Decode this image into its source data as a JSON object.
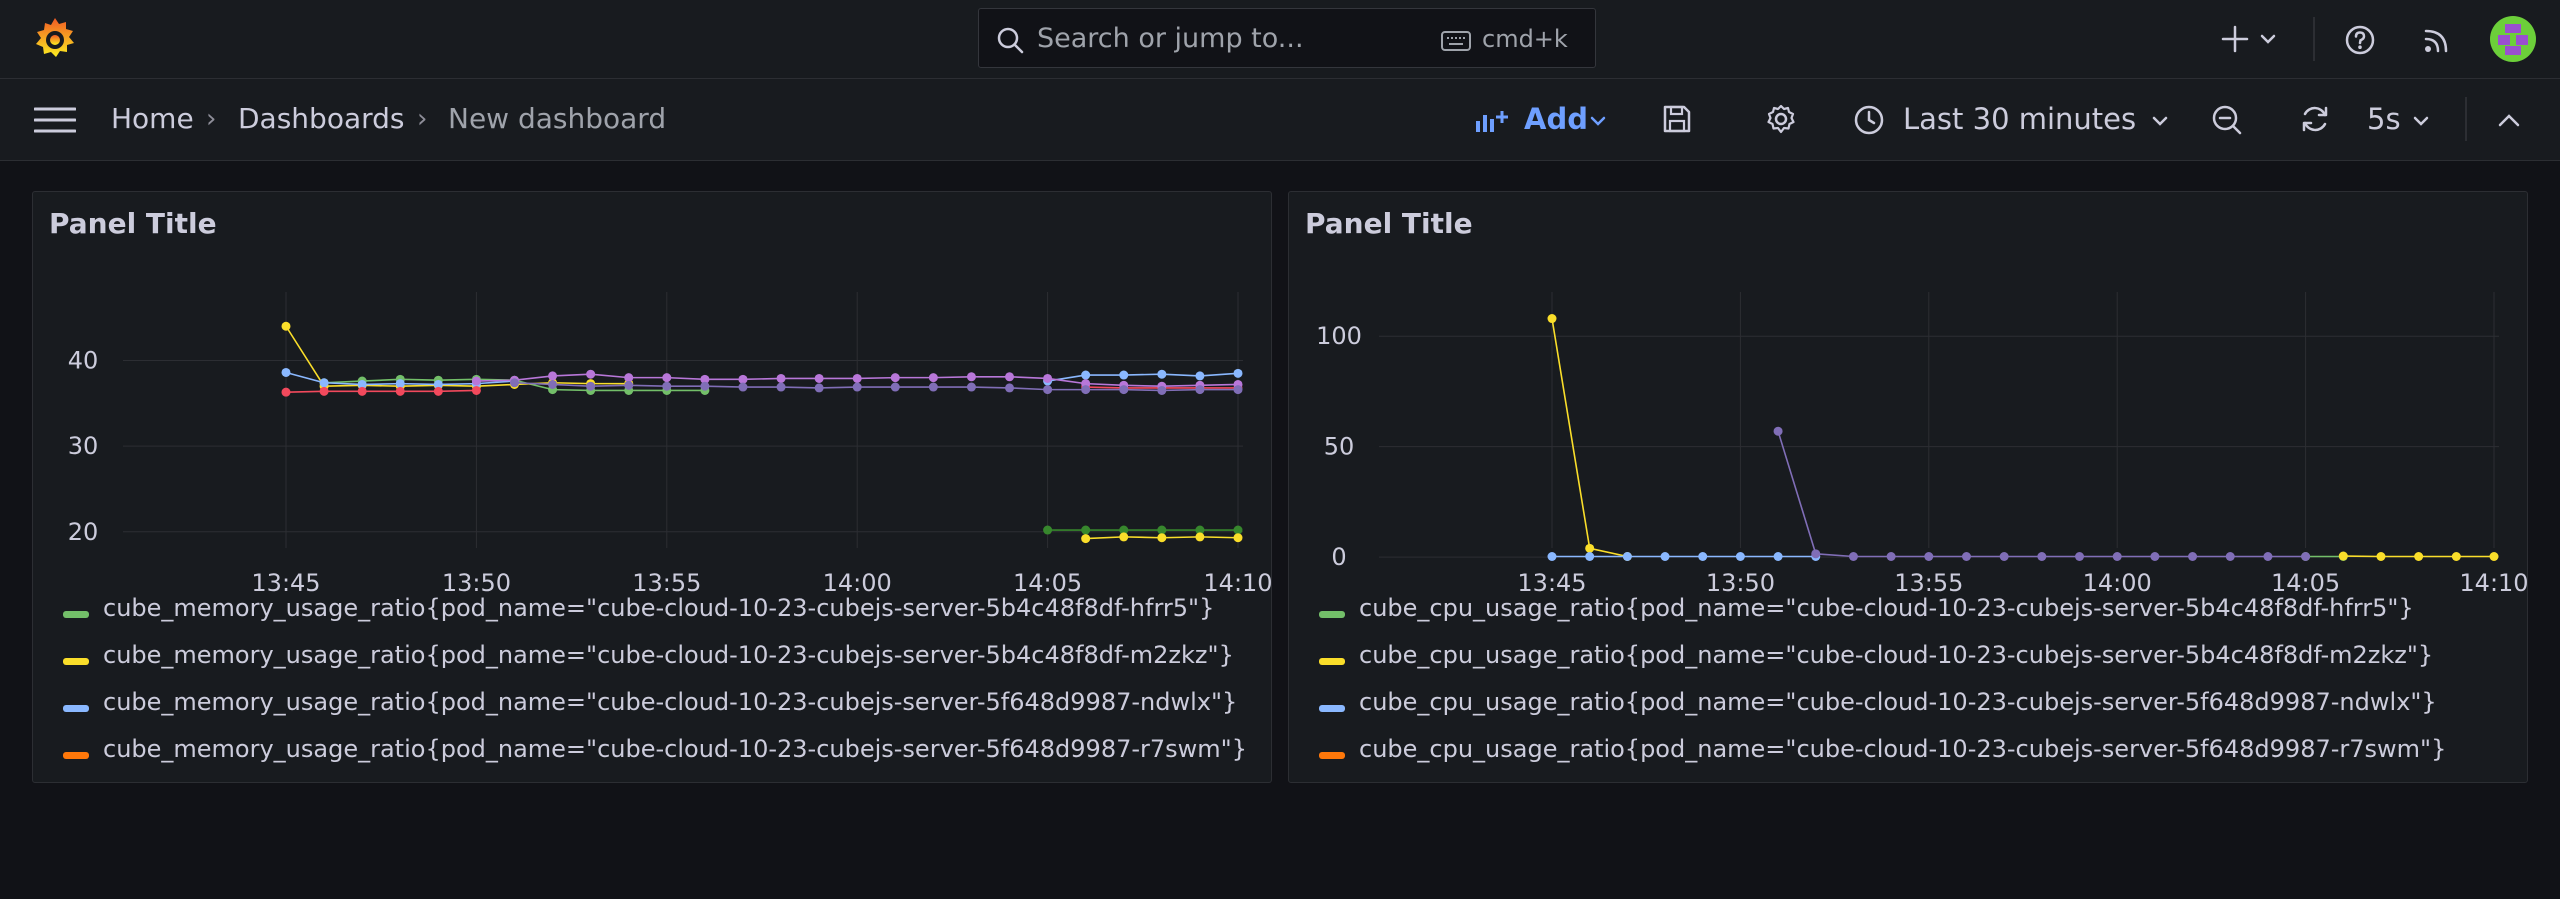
{
  "topbar": {
    "search_placeholder": "Search or jump to...",
    "shortcut": "cmd+k",
    "icons": [
      "grafana-logo-icon",
      "search-icon",
      "keyboard-icon",
      "plus-icon",
      "chevron-down-icon",
      "help-icon",
      "rss-icon",
      "avatar"
    ]
  },
  "navbar": {
    "breadcrumbs": [
      "Home",
      "Dashboards",
      "New dashboard"
    ],
    "add_label": "Add",
    "time_range": "Last 30 minutes",
    "refresh_interval": "5s"
  },
  "colors": {
    "green": "#73bf69",
    "yellow": "#fade2a",
    "blue": "#8ab8ff",
    "orange": "#ff780a",
    "red": "#f2495c",
    "purple": "#b877d9",
    "accent": "#6e9fff"
  },
  "panels": [
    {
      "title": "Panel Title",
      "legend": [
        {
          "label": "cube_memory_usage_ratio{pod_name=\"cube-cloud-10-23-cubejs-server-5b4c48f8df-hfrr5\"}",
          "color": "#73bf69"
        },
        {
          "label": "cube_memory_usage_ratio{pod_name=\"cube-cloud-10-23-cubejs-server-5b4c48f8df-m2zkz\"}",
          "color": "#fade2a"
        },
        {
          "label": "cube_memory_usage_ratio{pod_name=\"cube-cloud-10-23-cubejs-server-5f648d9987-ndwlx\"}",
          "color": "#8ab8ff"
        },
        {
          "label": "cube_memory_usage_ratio{pod_name=\"cube-cloud-10-23-cubejs-server-5f648d9987-r7swm\"}",
          "color": "#ff780a"
        }
      ]
    },
    {
      "title": "Panel Title",
      "legend": [
        {
          "label": "cube_cpu_usage_ratio{pod_name=\"cube-cloud-10-23-cubejs-server-5b4c48f8df-hfrr5\"}",
          "color": "#73bf69"
        },
        {
          "label": "cube_cpu_usage_ratio{pod_name=\"cube-cloud-10-23-cubejs-server-5b4c48f8df-m2zkz\"}",
          "color": "#fade2a"
        },
        {
          "label": "cube_cpu_usage_ratio{pod_name=\"cube-cloud-10-23-cubejs-server-5f648d9987-ndwlx\"}",
          "color": "#8ab8ff"
        },
        {
          "label": "cube_cpu_usage_ratio{pod_name=\"cube-cloud-10-23-cubejs-server-5f648d9987-r7swm\"}",
          "color": "#ff780a"
        }
      ]
    }
  ],
  "chart_data": [
    {
      "type": "line",
      "title": "Panel Title",
      "xlabel": "",
      "ylabel": "",
      "x_ticks": [
        "13:45",
        "13:50",
        "13:55",
        "14:00",
        "14:05",
        "14:10"
      ],
      "y_ticks": [
        20,
        30,
        40
      ],
      "xlim": [
        0,
        25.2
      ],
      "ylim": [
        16,
        48
      ],
      "grid": true,
      "legend_position": "bottom",
      "series": [
        {
          "name": "cube_memory_usage_ratio{pod_name=\"cube-cloud-10-23-cubejs-server-5b4c48f8df-hfrr5\"}",
          "color": "#73bf69",
          "x": [
            1,
            2,
            3,
            4,
            5,
            6,
            7,
            8,
            9,
            10,
            11
          ],
          "y": [
            37.4,
            37.6,
            37.8,
            37.7,
            37.8,
            37.7,
            36.6,
            36.5,
            36.5,
            36.5,
            36.5
          ]
        },
        {
          "name": "",
          "color": "#37872d",
          "x": [
            20,
            21,
            22,
            23,
            24,
            25
          ],
          "y": [
            20.2,
            20.2,
            20.2,
            20.2,
            20.2,
            20.2
          ]
        },
        {
          "name": "cube_memory_usage_ratio{pod_name=\"cube-cloud-10-23-cubejs-server-5b4c48f8df-m2zkz\"}",
          "color": "#fade2a",
          "x": [
            0,
            1,
            2,
            3,
            4,
            5,
            6,
            7,
            8,
            9
          ],
          "y": [
            44,
            37.0,
            37.1,
            37.0,
            37.1,
            37.0,
            37.2,
            37.4,
            37.3,
            37.3
          ]
        },
        {
          "name": "",
          "color": "#fade2a",
          "x": [
            21,
            22,
            23,
            24,
            25
          ],
          "y": [
            19.2,
            19.4,
            19.3,
            19.4,
            19.3
          ]
        },
        {
          "name": "cube_memory_usage_ratio{pod_name=\"cube-cloud-10-23-cubejs-server-5f648d9987-ndwlx\"}",
          "color": "#8ab8ff",
          "x": [
            0,
            1,
            2,
            3,
            4,
            5,
            6
          ],
          "y": [
            38.6,
            37.4,
            37.2,
            37.3,
            37.2,
            37.3,
            37.6
          ]
        },
        {
          "name": "",
          "color": "#8ab8ff",
          "x": [
            20,
            21,
            22,
            23,
            24,
            25
          ],
          "y": [
            37.6,
            38.3,
            38.3,
            38.4,
            38.2,
            38.5
          ]
        },
        {
          "name": "",
          "color": "#f2495c",
          "x": [
            0,
            1,
            2,
            3,
            4,
            5
          ],
          "y": [
            36.3,
            36.4,
            36.4,
            36.4,
            36.4,
            36.5
          ]
        },
        {
          "name": "",
          "color": "#f2495c",
          "x": [
            21,
            22,
            23,
            24,
            25
          ],
          "y": [
            36.9,
            36.8,
            36.8,
            36.8,
            36.8
          ]
        },
        {
          "name": "",
          "color": "#b877d9",
          "x": [
            5,
            6,
            7,
            8,
            9,
            10,
            11,
            12,
            13,
            14,
            15,
            16,
            17,
            18,
            19,
            20,
            21,
            22,
            23,
            24,
            25
          ],
          "y": [
            37.6,
            37.7,
            38.2,
            38.4,
            38.0,
            38.0,
            37.8,
            37.8,
            37.9,
            37.9,
            37.9,
            38.0,
            38.0,
            38.1,
            38.1,
            37.9,
            37.3,
            37.1,
            37.0,
            37.1,
            37.2
          ]
        },
        {
          "name": "",
          "color": "#806eb7",
          "x": [
            6,
            7,
            8,
            9,
            10,
            11,
            12,
            13,
            14,
            15,
            16,
            17,
            18,
            19,
            20,
            21,
            22,
            23,
            24,
            25
          ],
          "y": [
            37.4,
            37.2,
            37.0,
            37.1,
            37.0,
            37.0,
            36.9,
            36.9,
            36.8,
            36.9,
            36.9,
            36.9,
            36.9,
            36.8,
            36.6,
            36.6,
            36.6,
            36.5,
            36.6,
            36.6
          ]
        }
      ]
    },
    {
      "type": "line",
      "title": "Panel Title",
      "xlabel": "",
      "ylabel": "",
      "x_ticks": [
        "13:45",
        "13:50",
        "13:55",
        "14:00",
        "14:05",
        "14:10"
      ],
      "y_ticks": [
        0,
        50,
        100
      ],
      "xlim": [
        0,
        25.2
      ],
      "ylim": [
        -4,
        120
      ],
      "grid": true,
      "legend_position": "bottom",
      "series": [
        {
          "name": "cube_cpu_usage_ratio{pod_name=\"cube-cloud-10-23-cubejs-server-5b4c48f8df-hfrr5\"}",
          "color": "#73bf69",
          "x": [
            20,
            21
          ],
          "y": [
            0.3,
            0.3
          ]
        },
        {
          "name": "cube_cpu_usage_ratio{pod_name=\"cube-cloud-10-23-cubejs-server-5b4c48f8df-m2zkz\"}",
          "color": "#fade2a",
          "x": [
            0,
            1,
            2
          ],
          "y": [
            108,
            4,
            0.3
          ]
        },
        {
          "name": "",
          "color": "#fade2a",
          "x": [
            21,
            22,
            23,
            24,
            25
          ],
          "y": [
            0.5,
            0.3,
            0.3,
            0.3,
            0.3
          ]
        },
        {
          "name": "cube_cpu_usage_ratio{pod_name=\"cube-cloud-10-23-cubejs-server-5f648d9987-ndwlx\"}",
          "color": "#8ab8ff",
          "x": [
            0,
            1,
            2,
            3,
            4,
            5,
            6,
            7
          ],
          "y": [
            0.3,
            0.3,
            0.3,
            0.3,
            0.3,
            0.3,
            0.3,
            0.3
          ]
        },
        {
          "name": "",
          "color": "#806eb7",
          "x": [
            6,
            7,
            8,
            9,
            10,
            11,
            12,
            13,
            14,
            15,
            16,
            17,
            18,
            19,
            20
          ],
          "y": [
            57,
            1.5,
            0.3,
            0.3,
            0.3,
            0.3,
            0.3,
            0.3,
            0.3,
            0.3,
            0.3,
            0.3,
            0.3,
            0.3,
            0.3
          ]
        }
      ]
    }
  ]
}
